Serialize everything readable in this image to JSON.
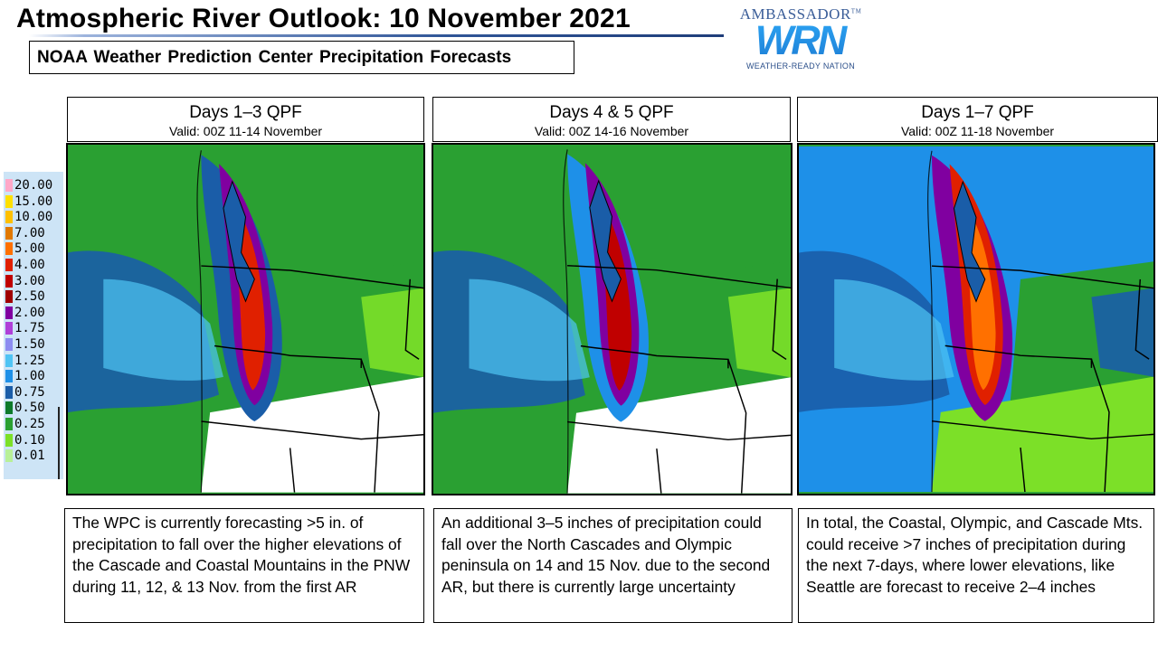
{
  "header": {
    "title": "Atmospheric River Outlook: 10 November 2021",
    "subtitle": "NOAA Weather Prediction Center Precipitation Forecasts"
  },
  "logo": {
    "top": "AMBASSADOR",
    "mark": "WRN",
    "bottom": "WEATHER-READY NATION"
  },
  "legend": {
    "items": [
      {
        "label": "20.00",
        "color": "#ffa8c8"
      },
      {
        "label": "15.00",
        "color": "#ffe000"
      },
      {
        "label": "10.00",
        "color": "#ffc000"
      },
      {
        "label": "7.00",
        "color": "#e07800"
      },
      {
        "label": "5.00",
        "color": "#ff7000"
      },
      {
        "label": "4.00",
        "color": "#e02000"
      },
      {
        "label": "3.00",
        "color": "#c00000"
      },
      {
        "label": "2.50",
        "color": "#a00000"
      },
      {
        "label": "2.00",
        "color": "#8000a0"
      },
      {
        "label": "1.75",
        "color": "#b040d8"
      },
      {
        "label": "1.50",
        "color": "#8c8cf0"
      },
      {
        "label": "1.25",
        "color": "#4fc4f4"
      },
      {
        "label": "1.00",
        "color": "#1e90e8"
      },
      {
        "label": "0.75",
        "color": "#1a5da8"
      },
      {
        "label": "0.50",
        "color": "#0d7a2a"
      },
      {
        "label": "0.25",
        "color": "#2aa032"
      },
      {
        "label": "0.10",
        "color": "#7ce028"
      },
      {
        "label": "0.01",
        "color": "#b8f098"
      }
    ]
  },
  "panels": [
    {
      "title": "Days 1–3 QPF",
      "valid": "Valid: 00Z 11-14 November",
      "description": "The WPC is currently forecasting >5 in. of precipitation to fall over the higher elevations of the Cascade and Coastal Mountains in the PNW during 11, 12, & 13 Nov. from the first AR",
      "map": {
        "offshore": "#2aa032",
        "peak": "#e02000",
        "mid": "#8000a0",
        "low": "#1a5da8",
        "inland": "#2aa032",
        "dry": "#ffffff",
        "east": "#7ce028"
      }
    },
    {
      "title": "Days 4 & 5 QPF",
      "valid": "Valid: 00Z 14-16 November",
      "description": "An additional 3–5 inches of precipitation could fall over the North Cascades and Olympic peninsula on 14 and 15 Nov. due to the second AR, but there is currently large uncertainty",
      "map": {
        "offshore": "#2aa032",
        "peak": "#c00000",
        "mid": "#8000a0",
        "low": "#1e90e8",
        "inland": "#2aa032",
        "dry": "#ffffff",
        "east": "#7ce028"
      }
    },
    {
      "title": "Days 1–7 QPF",
      "valid": "Valid: 00Z 11-18 November",
      "description": "In total, the Coastal, Olympic, and Cascade Mts. could receive >7 inches of precipitation during the next 7-days, where lower elevations, like Seattle are forecast to receive 2–4 inches",
      "map": {
        "offshore": "#1e90e8",
        "peak": "#ff7000",
        "mid": "#e02000",
        "low": "#8000a0",
        "inland": "#2aa032",
        "dry": "#7ce028",
        "east": "#1a5da8"
      }
    }
  ]
}
